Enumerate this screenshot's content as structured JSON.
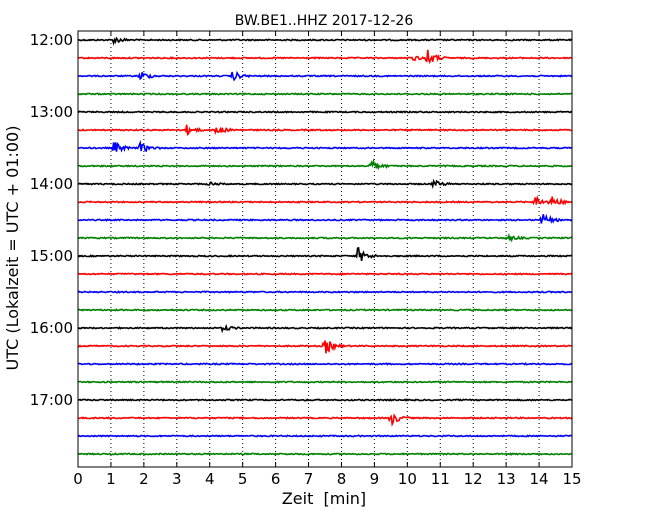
{
  "chart_data": {
    "type": "line",
    "title": "BW.BE1..HHZ 2017-12-26",
    "xlabel": "Zeit  [min]",
    "ylabel": "UTC (Lokalzeit = UTC + 01:00)",
    "xlim": [
      0,
      15
    ],
    "x_ticks": [
      "0",
      "1",
      "2",
      "3",
      "4",
      "5",
      "6",
      "7",
      "8",
      "9",
      "10",
      "11",
      "12",
      "13",
      "14",
      "15"
    ],
    "y_ticks": [
      {
        "row": 0,
        "label": "12:00"
      },
      {
        "row": 4,
        "label": "13:00"
      },
      {
        "row": 8,
        "label": "14:00"
      },
      {
        "row": 12,
        "label": "15:00"
      },
      {
        "row": 16,
        "label": "16:00"
      },
      {
        "row": 20,
        "label": "17:00"
      }
    ],
    "grid": "vertical dotted",
    "trace_colors": [
      "#000000",
      "#ff0000",
      "#0000ff",
      "#008000"
    ],
    "traces": [
      {
        "start": "12:00",
        "events": [
          {
            "t": 1.1,
            "amp": 0.3
          }
        ]
      },
      {
        "start": "12:15",
        "events": [
          {
            "t": 10.6,
            "amp": 0.7
          },
          {
            "t": 10.2,
            "amp": 0.2
          }
        ]
      },
      {
        "start": "12:30",
        "events": [
          {
            "t": 1.9,
            "amp": 0.4
          },
          {
            "t": 4.7,
            "amp": 0.4
          }
        ]
      },
      {
        "start": "12:45",
        "events": []
      },
      {
        "start": "13:00",
        "events": []
      },
      {
        "start": "13:15",
        "events": [
          {
            "t": 3.3,
            "amp": 0.4
          },
          {
            "t": 4.2,
            "amp": 0.4
          }
        ]
      },
      {
        "start": "13:30",
        "events": [
          {
            "t": 1.1,
            "amp": 0.55
          },
          {
            "t": 1.9,
            "amp": 0.45
          }
        ]
      },
      {
        "start": "13:45",
        "events": [
          {
            "t": 8.9,
            "amp": 0.5
          }
        ]
      },
      {
        "start": "14:00",
        "events": [
          {
            "t": 10.8,
            "amp": 0.3
          },
          {
            "t": 4.0,
            "amp": 0.15
          }
        ]
      },
      {
        "start": "14:15",
        "events": [
          {
            "t": 13.9,
            "amp": 0.5
          },
          {
            "t": 14.4,
            "amp": 0.5
          }
        ]
      },
      {
        "start": "14:30",
        "events": [
          {
            "t": 14.1,
            "amp": 0.5
          }
        ]
      },
      {
        "start": "14:45",
        "events": [
          {
            "t": 13.1,
            "amp": 0.2
          }
        ]
      },
      {
        "start": "15:00",
        "events": [
          {
            "t": 8.5,
            "amp": 0.7
          }
        ]
      },
      {
        "start": "15:15",
        "events": []
      },
      {
        "start": "15:30",
        "events": []
      },
      {
        "start": "15:45",
        "events": []
      },
      {
        "start": "16:00",
        "events": [
          {
            "t": 4.4,
            "amp": 0.25
          }
        ]
      },
      {
        "start": "16:15",
        "events": [
          {
            "t": 7.5,
            "amp": 0.7
          }
        ]
      },
      {
        "start": "16:30",
        "events": []
      },
      {
        "start": "16:45",
        "events": []
      },
      {
        "start": "17:00",
        "events": []
      },
      {
        "start": "17:15",
        "events": [
          {
            "t": 9.5,
            "amp": 0.6
          }
        ]
      },
      {
        "start": "17:30",
        "events": []
      },
      {
        "start": "17:45",
        "events": []
      }
    ]
  }
}
